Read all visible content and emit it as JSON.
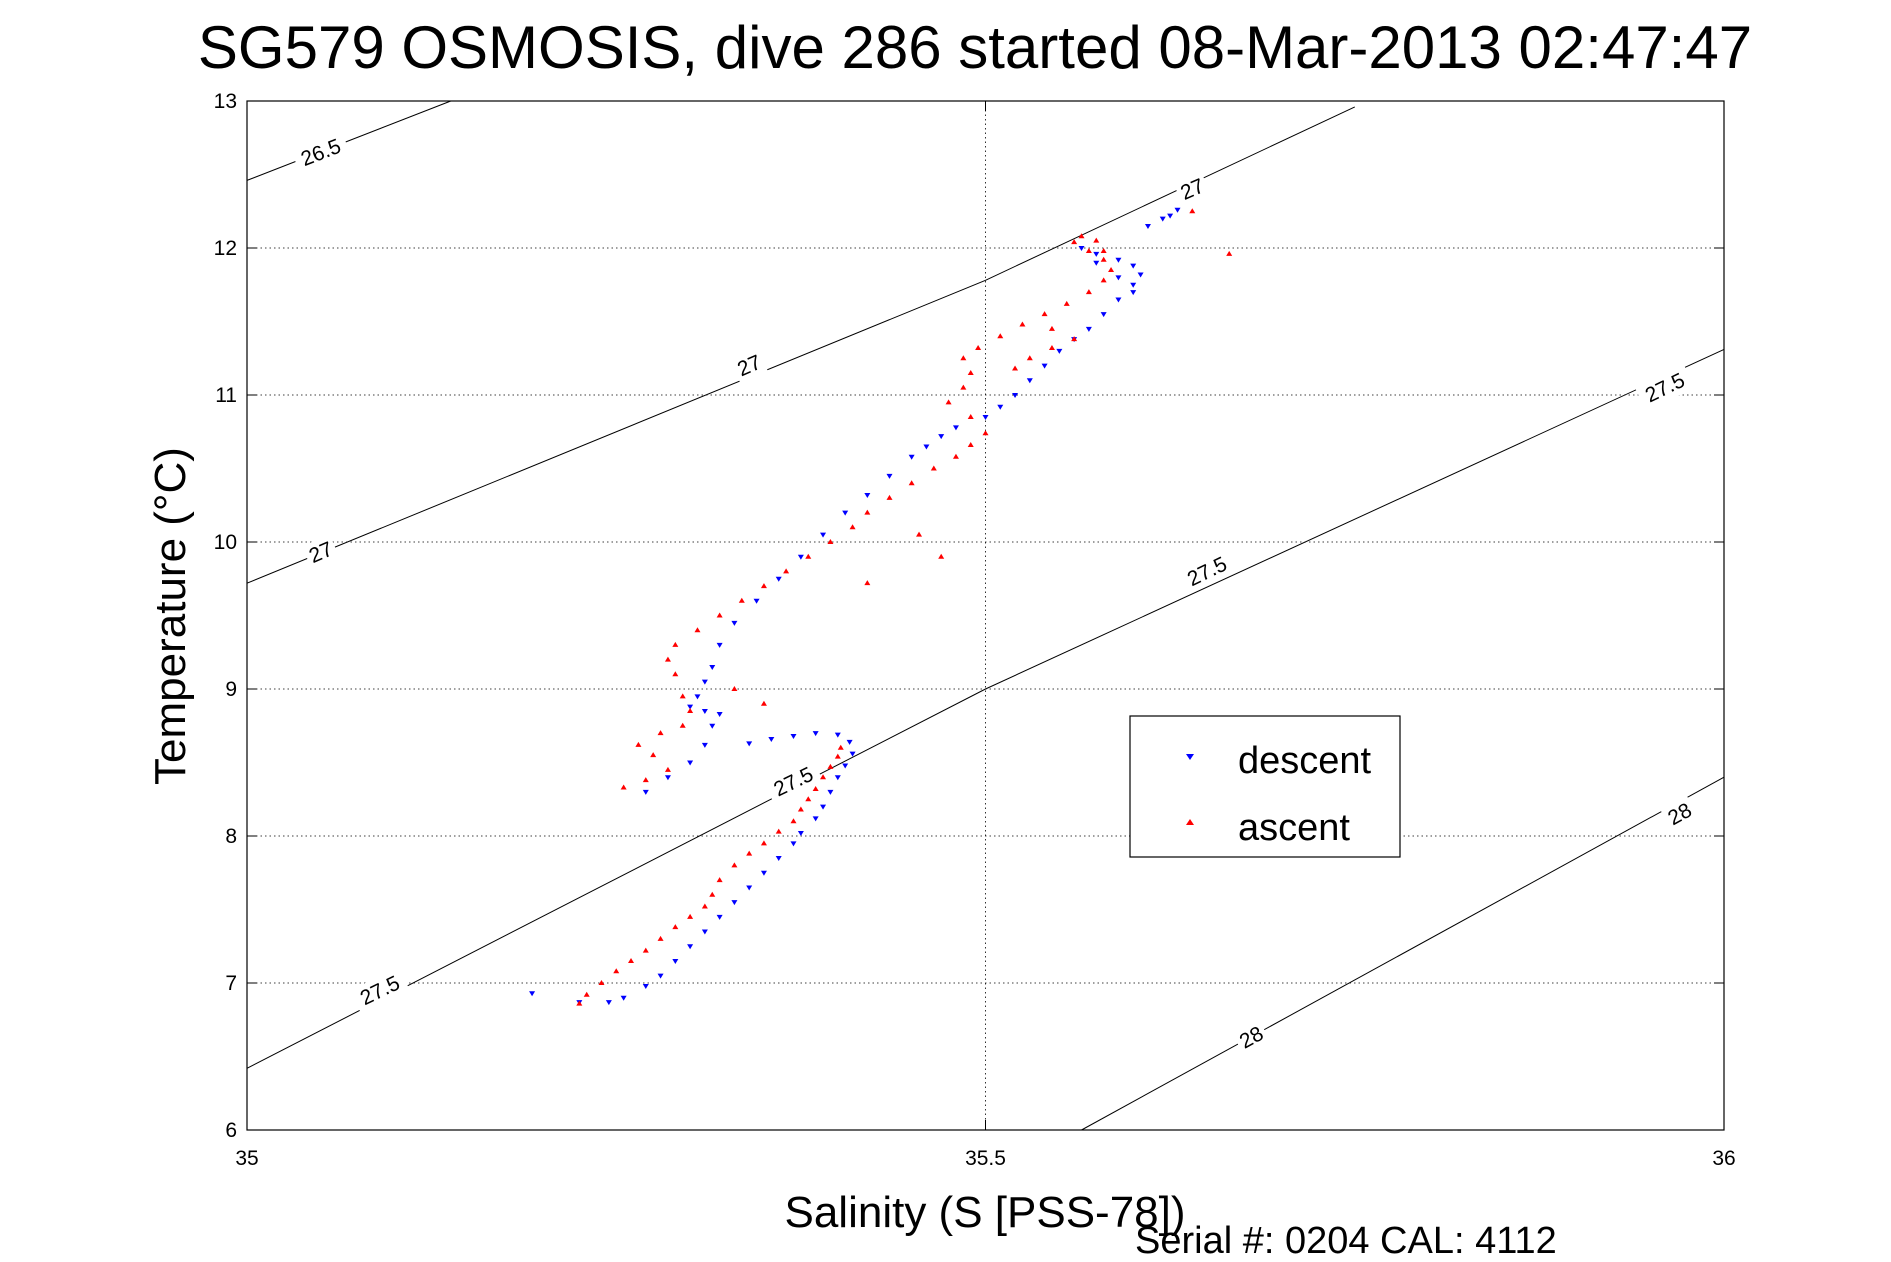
{
  "chart_data": {
    "type": "scatter",
    "title": "SG579 OSMOSIS, dive 286 started 08-Mar-2013 02:47:47",
    "xlabel": "Salinity (S [PSS-78])",
    "ylabel": "Temperature (°C)",
    "xlim": [
      35,
      36
    ],
    "ylim": [
      6,
      13
    ],
    "xticks": [
      35,
      35.5,
      36
    ],
    "xtick_labels": [
      "35",
      "35.5",
      "36"
    ],
    "yticks": [
      6,
      7,
      8,
      9,
      10,
      11,
      12,
      13
    ],
    "ytick_labels": [
      "6",
      "7",
      "8",
      "9",
      "10",
      "11",
      "12",
      "13"
    ],
    "grid": true,
    "legend_position": "center-right",
    "footer": "Serial #: 0204  CAL: 4112",
    "contours": [
      {
        "label": "26.5",
        "points": [
          [
            35.0,
            12.46
          ],
          [
            35.138,
            13.0
          ]
        ],
        "label_positions": [
          [
            35.05,
            12.65
          ]
        ]
      },
      {
        "label": "27",
        "points": [
          [
            35.0,
            9.72
          ],
          [
            35.5,
            11.78
          ],
          [
            35.75,
            12.96
          ]
        ],
        "label_positions": [
          [
            35.05,
            9.93
          ],
          [
            35.34,
            11.2
          ],
          [
            35.64,
            12.4
          ]
        ]
      },
      {
        "label": "27.5",
        "points": [
          [
            35.0,
            6.42
          ],
          [
            35.5,
            9.0
          ],
          [
            36.0,
            11.31
          ]
        ],
        "label_positions": [
          [
            35.09,
            6.95
          ],
          [
            35.37,
            8.37
          ],
          [
            35.65,
            9.8
          ],
          [
            35.96,
            11.05
          ]
        ]
      },
      {
        "label": "28",
        "points": [
          [
            35.565,
            6.0
          ],
          [
            36.0,
            8.4
          ]
        ],
        "label_positions": [
          [
            35.68,
            6.63
          ],
          [
            35.97,
            8.15
          ]
        ]
      }
    ],
    "series": [
      {
        "name": "descent",
        "color": "#0000ff",
        "marker": "triangle-down",
        "points": [
          [
            35.193,
            6.93
          ],
          [
            35.225,
            6.87
          ],
          [
            35.245,
            6.87
          ],
          [
            35.255,
            6.9
          ],
          [
            35.27,
            6.98
          ],
          [
            35.28,
            7.05
          ],
          [
            35.29,
            7.15
          ],
          [
            35.3,
            7.25
          ],
          [
            35.31,
            7.35
          ],
          [
            35.32,
            7.45
          ],
          [
            35.33,
            7.55
          ],
          [
            35.34,
            7.65
          ],
          [
            35.35,
            7.75
          ],
          [
            35.36,
            7.85
          ],
          [
            35.37,
            7.95
          ],
          [
            35.375,
            8.02
          ],
          [
            35.385,
            8.12
          ],
          [
            35.39,
            8.2
          ],
          [
            35.395,
            8.3
          ],
          [
            35.4,
            8.4
          ],
          [
            35.405,
            8.48
          ],
          [
            35.41,
            8.56
          ],
          [
            35.408,
            8.64
          ],
          [
            35.4,
            8.69
          ],
          [
            35.385,
            8.7
          ],
          [
            35.37,
            8.68
          ],
          [
            35.355,
            8.66
          ],
          [
            35.34,
            8.63
          ],
          [
            35.27,
            8.3
          ],
          [
            35.285,
            8.4
          ],
          [
            35.3,
            8.5
          ],
          [
            35.31,
            8.62
          ],
          [
            35.315,
            8.75
          ],
          [
            35.32,
            8.83
          ],
          [
            35.31,
            8.85
          ],
          [
            35.3,
            8.88
          ],
          [
            35.305,
            8.95
          ],
          [
            35.31,
            9.05
          ],
          [
            35.315,
            9.15
          ],
          [
            35.32,
            9.3
          ],
          [
            35.33,
            9.45
          ],
          [
            35.345,
            9.6
          ],
          [
            35.36,
            9.75
          ],
          [
            35.375,
            9.9
          ],
          [
            35.39,
            10.05
          ],
          [
            35.405,
            10.2
          ],
          [
            35.42,
            10.32
          ],
          [
            35.435,
            10.45
          ],
          [
            35.45,
            10.58
          ],
          [
            35.46,
            10.65
          ],
          [
            35.47,
            10.72
          ],
          [
            35.48,
            10.78
          ],
          [
            35.5,
            10.85
          ],
          [
            35.51,
            10.92
          ],
          [
            35.52,
            11.0
          ],
          [
            35.53,
            11.1
          ],
          [
            35.54,
            11.2
          ],
          [
            35.55,
            11.3
          ],
          [
            35.56,
            11.38
          ],
          [
            35.57,
            11.45
          ],
          [
            35.58,
            11.55
          ],
          [
            35.59,
            11.65
          ],
          [
            35.6,
            11.75
          ],
          [
            35.605,
            11.82
          ],
          [
            35.6,
            11.88
          ],
          [
            35.59,
            11.92
          ],
          [
            35.575,
            11.96
          ],
          [
            35.565,
            12.0
          ],
          [
            35.575,
            11.9
          ],
          [
            35.59,
            11.8
          ],
          [
            35.6,
            11.7
          ],
          [
            35.61,
            12.15
          ],
          [
            35.62,
            12.2
          ],
          [
            35.63,
            12.26
          ],
          [
            35.625,
            12.22
          ]
        ]
      },
      {
        "name": "ascent",
        "color": "#ff0000",
        "marker": "triangle-up",
        "points": [
          [
            35.225,
            6.86
          ],
          [
            35.23,
            6.92
          ],
          [
            35.24,
            7.0
          ],
          [
            35.25,
            7.08
          ],
          [
            35.26,
            7.15
          ],
          [
            35.27,
            7.22
          ],
          [
            35.28,
            7.3
          ],
          [
            35.29,
            7.38
          ],
          [
            35.3,
            7.45
          ],
          [
            35.31,
            7.52
          ],
          [
            35.315,
            7.6
          ],
          [
            35.32,
            7.7
          ],
          [
            35.33,
            7.8
          ],
          [
            35.34,
            7.88
          ],
          [
            35.35,
            7.95
          ],
          [
            35.36,
            8.03
          ],
          [
            35.37,
            8.1
          ],
          [
            35.375,
            8.18
          ],
          [
            35.38,
            8.25
          ],
          [
            35.385,
            8.32
          ],
          [
            35.39,
            8.4
          ],
          [
            35.395,
            8.47
          ],
          [
            35.4,
            8.54
          ],
          [
            35.402,
            8.6
          ],
          [
            35.255,
            8.33
          ],
          [
            35.27,
            8.38
          ],
          [
            35.285,
            8.45
          ],
          [
            35.275,
            8.55
          ],
          [
            35.265,
            8.62
          ],
          [
            35.28,
            8.7
          ],
          [
            35.295,
            8.75
          ],
          [
            35.3,
            8.85
          ],
          [
            35.295,
            8.95
          ],
          [
            35.29,
            9.1
          ],
          [
            35.285,
            9.2
          ],
          [
            35.29,
            9.3
          ],
          [
            35.305,
            9.4
          ],
          [
            35.32,
            9.5
          ],
          [
            35.335,
            9.6
          ],
          [
            35.35,
            9.7
          ],
          [
            35.365,
            9.8
          ],
          [
            35.38,
            9.9
          ],
          [
            35.395,
            10.0
          ],
          [
            35.41,
            10.1
          ],
          [
            35.42,
            10.2
          ],
          [
            35.435,
            10.3
          ],
          [
            35.45,
            10.4
          ],
          [
            35.465,
            10.5
          ],
          [
            35.48,
            10.58
          ],
          [
            35.49,
            10.66
          ],
          [
            35.5,
            10.74
          ],
          [
            35.49,
            10.85
          ],
          [
            35.475,
            10.95
          ],
          [
            35.485,
            11.05
          ],
          [
            35.49,
            11.15
          ],
          [
            35.485,
            11.25
          ],
          [
            35.495,
            11.32
          ],
          [
            35.51,
            11.4
          ],
          [
            35.525,
            11.48
          ],
          [
            35.54,
            11.55
          ],
          [
            35.555,
            11.62
          ],
          [
            35.57,
            11.7
          ],
          [
            35.58,
            11.78
          ],
          [
            35.585,
            11.85
          ],
          [
            35.58,
            11.92
          ],
          [
            35.57,
            11.98
          ],
          [
            35.56,
            12.04
          ],
          [
            35.565,
            12.08
          ],
          [
            35.575,
            12.05
          ],
          [
            35.58,
            11.98
          ],
          [
            35.56,
            11.38
          ],
          [
            35.545,
            11.32
          ],
          [
            35.53,
            11.25
          ],
          [
            35.52,
            11.18
          ],
          [
            35.545,
            11.45
          ],
          [
            35.64,
            12.25
          ],
          [
            35.665,
            11.96
          ],
          [
            35.47,
            9.9
          ],
          [
            35.455,
            10.05
          ],
          [
            35.42,
            9.72
          ],
          [
            35.35,
            8.9
          ],
          [
            35.33,
            9.0
          ]
        ]
      }
    ]
  }
}
